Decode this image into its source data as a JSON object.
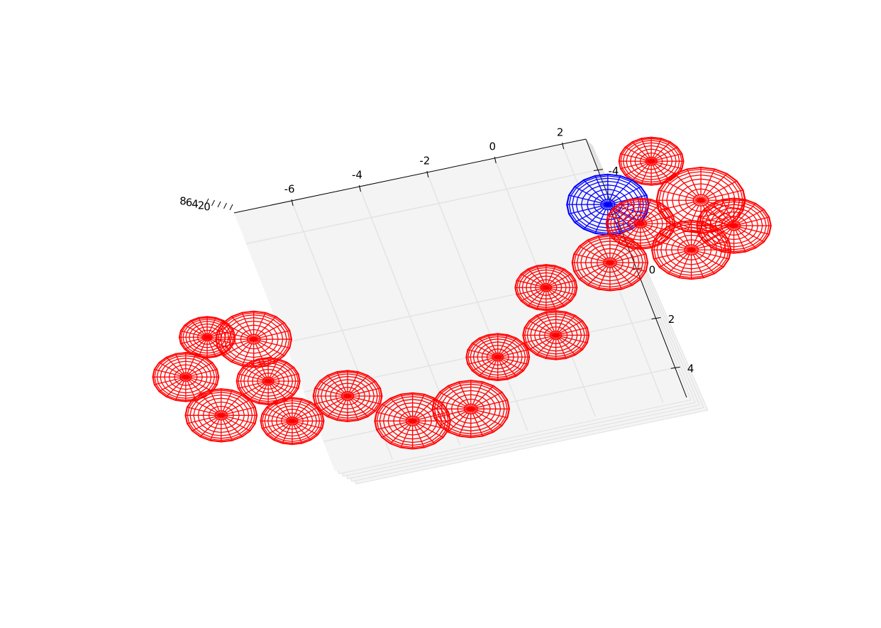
{
  "chart_data": {
    "type": "sphere3d",
    "xlim": [
      -7.7,
      2.7
    ],
    "xticks": [
      -6,
      -4,
      -2,
      0,
      2
    ],
    "ylim": [
      -5.25,
      5.2
    ],
    "yticks": [
      -4,
      0,
      2,
      4
    ],
    "zlim": [
      0,
      9
    ],
    "zticks": [
      8,
      6,
      4,
      2,
      0
    ],
    "grid": true,
    "x": [
      4.25,
      2.6,
      5.19,
      5.82,
      3.29,
      4.4,
      2.04,
      0.03,
      -0.21,
      -2.03,
      -3.32,
      -5.04,
      -6.55,
      -8.33,
      -10.21,
      -8.56,
      -10.77,
      -8.51,
      -9.76
    ],
    "y": [
      -3.91,
      -2.63,
      -2.06,
      -0.85,
      -1.66,
      -0.28,
      -0.44,
      -0.01,
      1.85,
      2.21,
      3.94,
      3.93,
      2.49,
      2.99,
      2.22,
      1.31,
      0.51,
      -0.37,
      -0.81
    ],
    "radius": [
      0.94,
      1.19,
      1.29,
      1.08,
      1.0,
      1.15,
      1.1,
      0.9,
      0.96,
      0.92,
      1.12,
      1.1,
      1.0,
      0.92,
      1.04,
      0.92,
      0.96,
      1.1,
      0.81
    ],
    "colors": [
      "#ff0000",
      "#0000ff",
      "#ff0000",
      "#ff0000",
      "#ff0000",
      "#ff0000",
      "#ff0000",
      "#ff0000",
      "#ff0000",
      "#ff0000",
      "#ff0000",
      "#ff0000",
      "#ff0000",
      "#ff0000",
      "#ff0000",
      "#ff0000",
      "#ff0000",
      "#ff0000",
      "#ff0000"
    ]
  }
}
